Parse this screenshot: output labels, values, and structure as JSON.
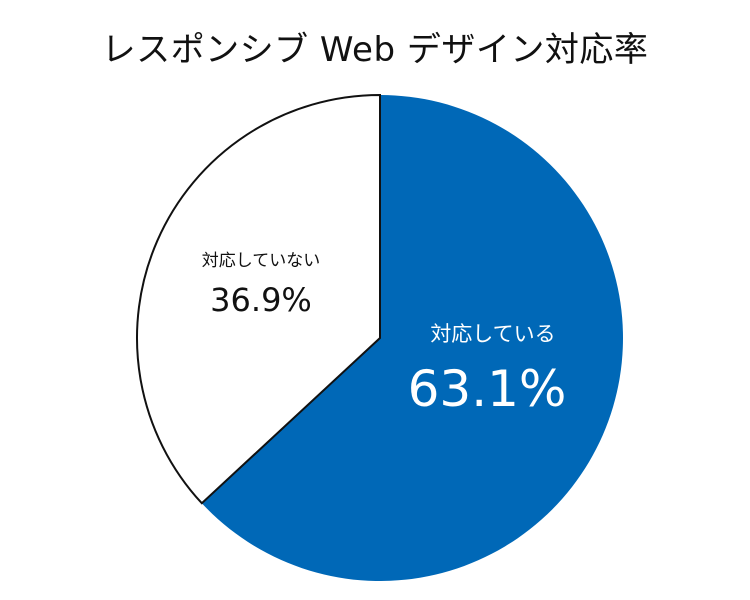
{
  "chart_data": {
    "type": "pie",
    "title": "レスポンシブ Web デザイン対応率",
    "slices": [
      {
        "label": "対応している",
        "value": 63.1,
        "value_label": "63.1%",
        "color": "#0068B7",
        "text_color": "#ffffff"
      },
      {
        "label": "対応していない",
        "value": 36.9,
        "value_label": "36.9%",
        "color": "#ffffff",
        "text_color": "#111111"
      }
    ],
    "start": "12 o'clock",
    "direction": "clockwise",
    "legend": "none"
  }
}
